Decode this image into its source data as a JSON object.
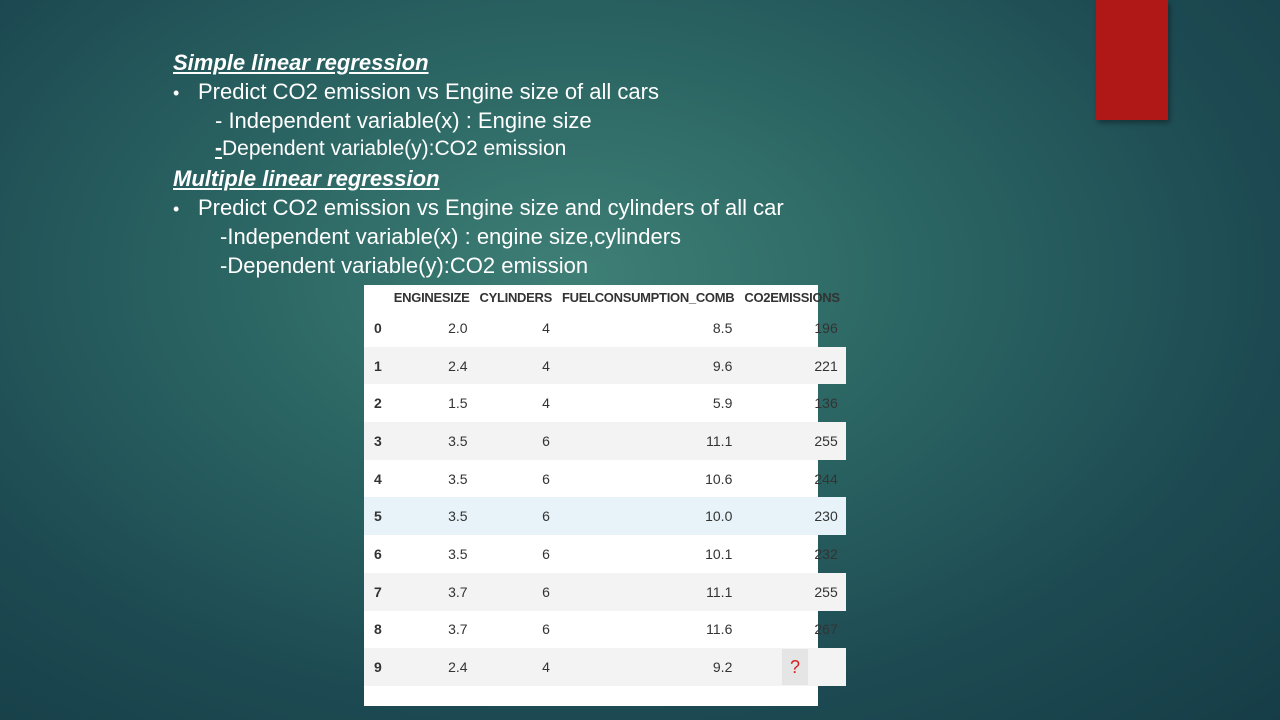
{
  "slide": {
    "accent_color": "#b01818",
    "simple": {
      "heading": "Simple linear regression",
      "bullet": "Predict CO2 emission vs Engine size of all cars",
      "independent": "- Independent variable(x) : Engine size",
      "dependent_dash": "-",
      "dependent": "Dependent variable(y):CO2 emission"
    },
    "multiple": {
      "heading": "Multiple linear regression",
      "bullet": "Predict CO2 emission vs Engine size and cylinders of all car",
      "independent": "-Independent variable(x) : engine size,cylinders",
      "dependent": "-Dependent variable(y):CO2 emission"
    }
  },
  "table": {
    "headers": [
      "",
      "ENGINESIZE",
      "CYLINDERS",
      "FUELCONSUMPTION_COMB",
      "CO2EMISSIONS"
    ],
    "rows": [
      [
        "0",
        "2.0",
        "4",
        "8.5",
        "196"
      ],
      [
        "1",
        "2.4",
        "4",
        "9.6",
        "221"
      ],
      [
        "2",
        "1.5",
        "4",
        "5.9",
        "136"
      ],
      [
        "3",
        "3.5",
        "6",
        "11.1",
        "255"
      ],
      [
        "4",
        "3.5",
        "6",
        "10.6",
        "244"
      ],
      [
        "5",
        "3.5",
        "6",
        "10.0",
        "230"
      ],
      [
        "6",
        "3.5",
        "6",
        "10.1",
        "232"
      ],
      [
        "7",
        "3.7",
        "6",
        "11.1",
        "255"
      ],
      [
        "8",
        "3.7",
        "6",
        "11.6",
        "267"
      ],
      [
        "9",
        "2.4",
        "4",
        "9.2",
        "?"
      ]
    ],
    "highlight_row": 5
  }
}
